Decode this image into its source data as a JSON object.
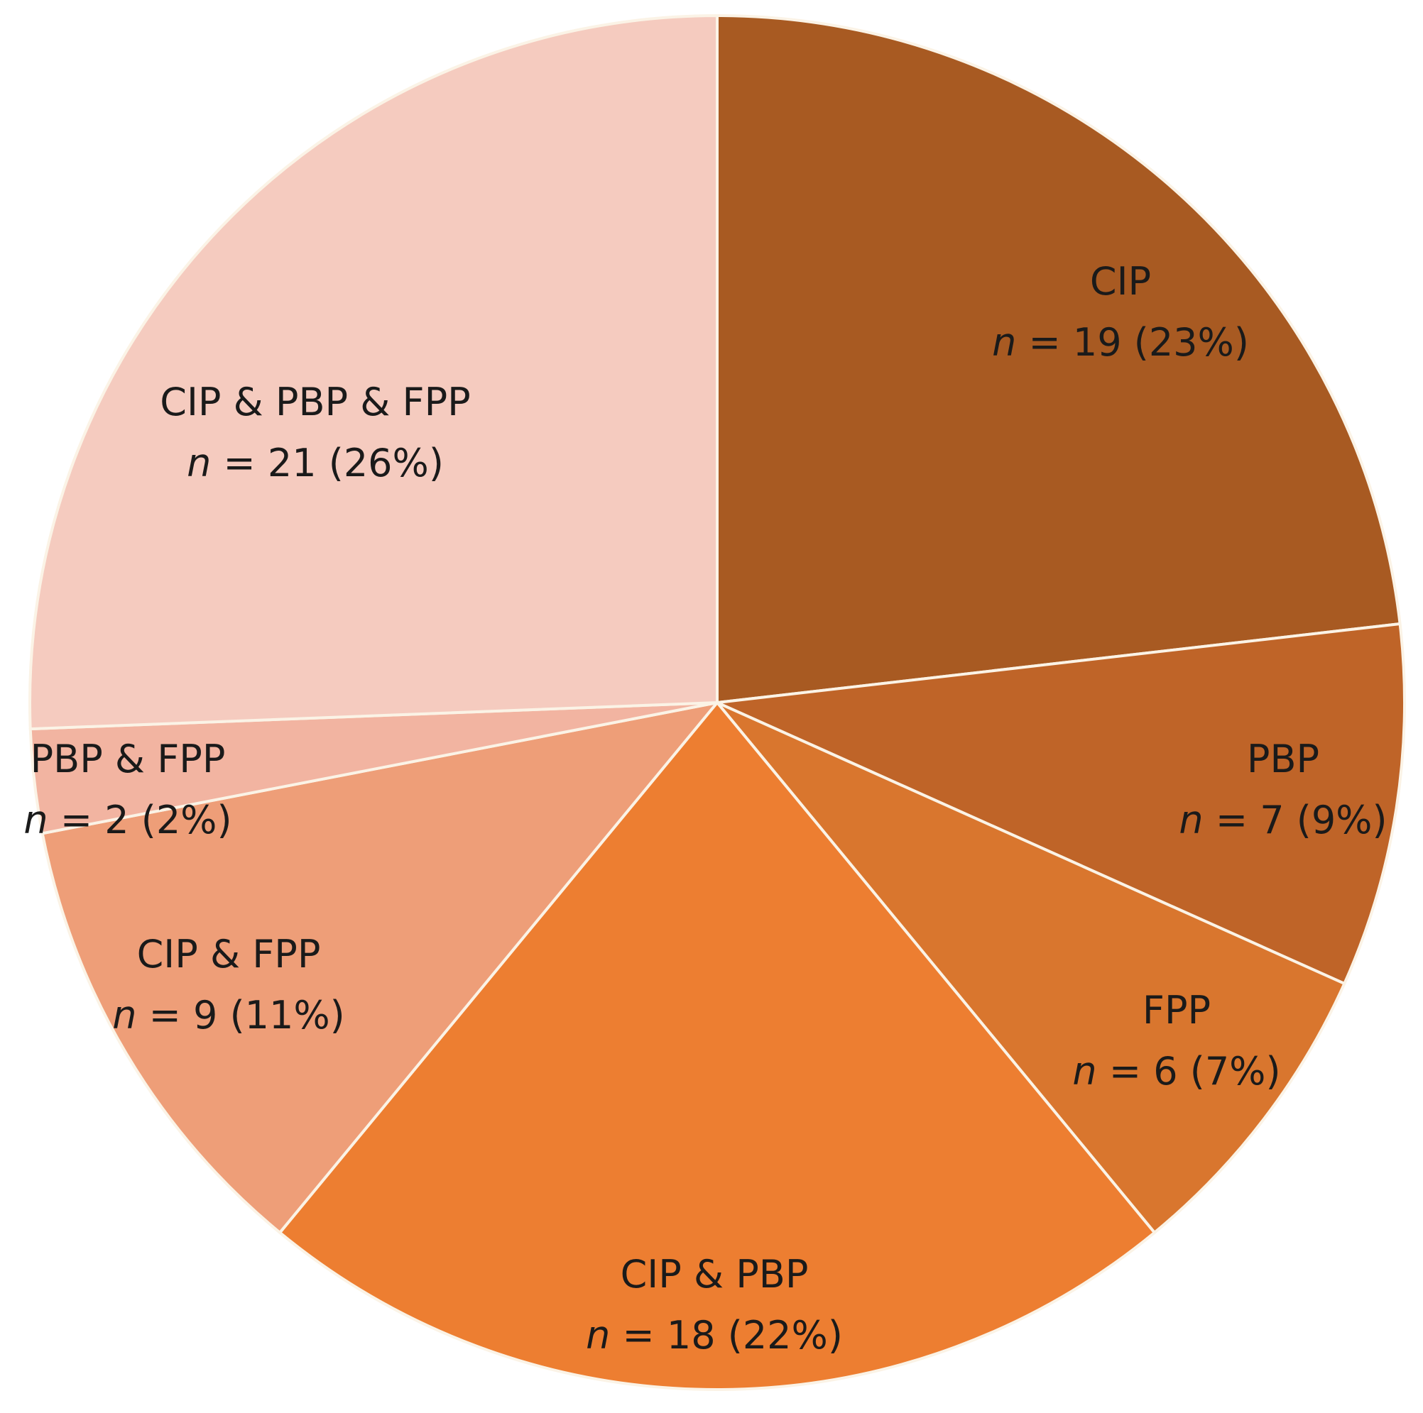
{
  "chart_data": {
    "type": "pie",
    "slices": [
      {
        "category": "CIP",
        "count": 19,
        "percent_label": "(23%)",
        "color": "#a85a22"
      },
      {
        "category": "PBP",
        "count": 7,
        "percent_label": "(9%)",
        "color": "#bf6428"
      },
      {
        "category": "FPP",
        "count": 6,
        "percent_label": "(7%)",
        "color": "#d9762e"
      },
      {
        "category": "CIP & PBP",
        "count": 18,
        "percent_label": "(22%)",
        "color": "#ed7e31"
      },
      {
        "category": "CIP & FPP",
        "count": 9,
        "percent_label": "(11%)",
        "color": "#ee9e78"
      },
      {
        "category": "PBP & FPP",
        "count": 2,
        "percent_label": "(2%)",
        "color": "#f2b4a1"
      },
      {
        "category": "CIP & PBP & FPP",
        "count": 21,
        "percent_label": "(26%)",
        "color": "#f5cbbf"
      }
    ],
    "value_label_prefix": "n",
    "value_label_equals": "="
  }
}
